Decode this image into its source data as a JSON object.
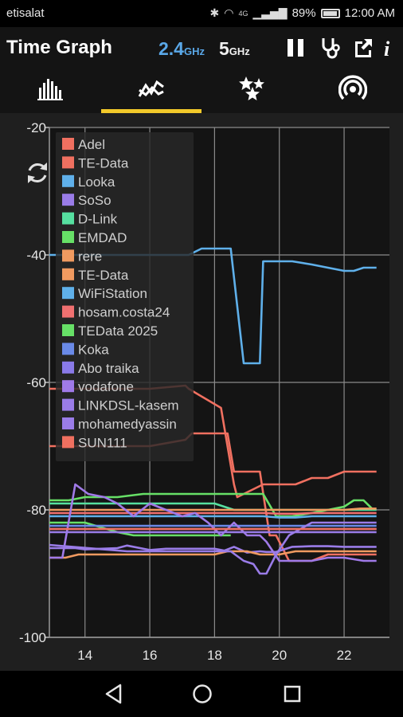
{
  "status_bar": {
    "carrier": "etisalat",
    "signal_label": "4G",
    "battery": "89%",
    "time": "12:00 AM"
  },
  "app_bar": {
    "title": "Time Graph",
    "band_24_value": "2.4",
    "band_24_unit": "GHz",
    "band_5_value": "5",
    "band_5_unit": "GHz",
    "actions": [
      "pause-icon",
      "stethoscope-icon",
      "share-icon",
      "info-icon"
    ],
    "info_glyph": "i"
  },
  "tabs": [
    {
      "name": "channel-rating",
      "icon": "bar-chart-icon"
    },
    {
      "name": "time-graph",
      "icon": "line-graph-icon",
      "selected": true
    },
    {
      "name": "channel-graph",
      "icon": "stars-icon"
    },
    {
      "name": "access-points",
      "icon": "wifi-signal-icon"
    }
  ],
  "colors": {
    "accent": "#f2c92a",
    "band_24": "#5aa8e8",
    "background": "#1f1f1f"
  },
  "chart_data": {
    "type": "line",
    "y_ticks": [
      "-20",
      "-40",
      "-60",
      "-80",
      "-100"
    ],
    "x_ticks": [
      "14",
      "16",
      "18",
      "20",
      "22"
    ],
    "ylim": [
      -100,
      -20
    ],
    "xlim": [
      12.9,
      23.4
    ],
    "grid": true,
    "legend_position": "top-left",
    "series": [
      {
        "name": "Adel",
        "color": "#f07060",
        "x": [
          12.9,
          16,
          17.1,
          17.2,
          18.2,
          18.6,
          18.7,
          19.5,
          20.5,
          21,
          21.5,
          22,
          22.6,
          23
        ],
        "y": [
          -61,
          -61,
          -60.5,
          -61,
          -64,
          -76,
          -78,
          -76,
          -76,
          -75,
          -75,
          -74,
          -74,
          -74
        ]
      },
      {
        "name": "TE-Data",
        "color": "#f07060",
        "x": [
          12.9,
          16,
          17.1,
          17.3,
          18.4,
          18.6,
          19.4,
          19.7,
          19.9,
          20.3,
          21,
          21.5,
          22.6,
          23
        ],
        "y": [
          -70,
          -70,
          -69,
          -68,
          -68,
          -74,
          -74,
          -84,
          -84,
          -88,
          -88,
          -87,
          -87,
          -87
        ]
      },
      {
        "name": "Looka",
        "color": "#5fb0ea",
        "x": [
          12.9,
          17.2,
          17.6,
          18.5,
          18.9,
          19.4,
          19.5,
          19.9,
          20.4,
          21,
          21.5,
          22,
          22.3,
          22.6,
          23
        ],
        "y": [
          -40,
          -40,
          -39,
          -39,
          -57,
          -57,
          -41,
          -41,
          -41,
          -41.5,
          -42,
          -42.5,
          -42.5,
          -42,
          -42
        ]
      },
      {
        "name": "SoSo",
        "color": "#9a7ce8",
        "x": [
          12.9,
          13.3,
          13.7,
          14,
          14.5,
          15,
          15.3,
          16,
          16.5,
          17,
          17.5,
          18,
          18.3,
          18.6,
          19,
          19.4,
          19.6,
          19.9,
          20.4,
          21,
          21.5,
          22,
          22.6,
          23
        ],
        "y": [
          -86,
          -86,
          -86,
          -86.2,
          -86.1,
          -86,
          -85.6,
          -86.3,
          -86.1,
          -86.1,
          -86.1,
          -86.1,
          -86.4,
          -85.8,
          -86.7,
          -86.5,
          -86.6,
          -86.6,
          -85.8,
          -85.7,
          -85.7,
          -85.8,
          -85.8,
          -85.8
        ]
      },
      {
        "name": "D-Link",
        "color": "#56e0a0",
        "x": [
          12.9,
          16,
          18,
          18.6,
          19.5,
          20,
          21.5,
          22.4,
          22.7,
          23
        ],
        "y": [
          -79,
          -79,
          -79,
          -80,
          -80,
          -80,
          -80,
          -80,
          -80,
          -80
        ]
      },
      {
        "name": "EMDAD",
        "color": "#67e067",
        "x": [
          12.9,
          13.5,
          14,
          15,
          15.8,
          16,
          17,
          17.5,
          18,
          18.5,
          19,
          19.5,
          19.9,
          20.4,
          21,
          21.5,
          22,
          22.3,
          22.6,
          22.9
        ],
        "y": [
          -78.5,
          -78.5,
          -78,
          -78,
          -77.5,
          -77.5,
          -77.5,
          -77.5,
          -77.5,
          -77.5,
          -77.5,
          -77.5,
          -81,
          -81,
          -80.5,
          -80,
          -79.5,
          -78.5,
          -78.5,
          -80
        ]
      },
      {
        "name": "rere",
        "color": "#f09a60",
        "x": [
          12.9,
          13.4,
          13.8,
          18,
          18.4,
          19,
          19.4,
          19.6,
          20,
          20.5,
          21,
          21.5,
          22,
          22.5,
          23
        ],
        "y": [
          -87.5,
          -87.5,
          -87,
          -87,
          -86.5,
          -86.5,
          -87,
          -87,
          -87,
          -86.5,
          -86.5,
          -86.5,
          -86.5,
          -86.5,
          -86.5
        ]
      },
      {
        "name": "TE-Data",
        "color": "#f09a60",
        "x": [
          12.9,
          16,
          18,
          18.6,
          19,
          19.5,
          20,
          20.5,
          21,
          21.5,
          22,
          22.5,
          23
        ],
        "y": [
          -80,
          -80,
          -80,
          -80,
          -80,
          -80,
          -80,
          -80,
          -80,
          -80,
          -80,
          -79.8,
          -79.8
        ]
      },
      {
        "name": "WiFiStation",
        "color": "#5fb0ea",
        "x": [
          12.9,
          16,
          18,
          18.7,
          19,
          19.5,
          20,
          20.5,
          21,
          21.5,
          22,
          22.5,
          23
        ],
        "y": [
          -81,
          -81,
          -81,
          -81,
          -81,
          -81,
          -81.2,
          -81.2,
          -81,
          -81,
          -81,
          -81,
          -81
        ]
      },
      {
        "name": "hosam.costa24",
        "color": "#f07070",
        "x": [
          12.9,
          16,
          18,
          18.7,
          19,
          19.5,
          20,
          20.5,
          21,
          21.5,
          22,
          22.5,
          23
        ],
        "y": [
          -80.5,
          -80.5,
          -80.5,
          -80.5,
          -80.5,
          -80.5,
          -80.6,
          -80.6,
          -80.5,
          -80.5,
          -80.5,
          -80.5,
          -80.5
        ]
      },
      {
        "name": "TEData 2025",
        "color": "#67e067",
        "x": [
          12.9,
          13.6,
          14,
          15,
          15.5,
          16,
          17,
          17.5,
          18,
          18.5
        ],
        "y": [
          -82,
          -82,
          -82,
          -83.5,
          -84,
          -84,
          -84,
          -84,
          -84,
          -84
        ]
      },
      {
        "name": "Koka",
        "color": "#6a8ae8",
        "x": [
          12.9,
          15,
          16,
          18,
          19,
          20,
          21,
          22,
          23
        ],
        "y": [
          -82.5,
          -82.5,
          -82.5,
          -82.5,
          -82.5,
          -82.5,
          -82.5,
          -82.5,
          -82.5
        ]
      },
      {
        "name": "Abo traika",
        "color": "#8a7ae8",
        "x": [
          12.9,
          14,
          15,
          16,
          18,
          19,
          20,
          21,
          22,
          23
        ],
        "y": [
          -83,
          -83,
          -83,
          -83,
          -83,
          -83,
          -83,
          -83,
          -83,
          -83
        ]
      },
      {
        "name": "vodafone",
        "color": "#a07ae8",
        "x": [
          12.9,
          13.3,
          13.7,
          14.1,
          14.6,
          15,
          15.5,
          16,
          16.5,
          17,
          17.4,
          17.8,
          18.2,
          18.6,
          19,
          19.4,
          19.6,
          20,
          20.5,
          21,
          21.5,
          22,
          22.6,
          23
        ],
        "y": [
          -87.5,
          -87.5,
          -76,
          -77.5,
          -78,
          -79,
          -81,
          -79,
          -80,
          -81,
          -80.5,
          -82,
          -84,
          -82,
          -84,
          -84,
          -85,
          -88,
          -88,
          -88,
          -87.5,
          -87.5,
          -88,
          -88
        ]
      },
      {
        "name": "LINKDSL-kasem",
        "color": "#9a7ce8",
        "x": [
          12.9,
          15.3,
          18.5,
          18.9,
          19.2,
          19.4,
          19.6,
          19.9,
          20.3,
          21,
          22,
          23
        ],
        "y": [
          -85.5,
          -86.5,
          -86.5,
          -88,
          -88.5,
          -90,
          -90,
          -87,
          -84,
          -82,
          -82,
          -82
        ]
      },
      {
        "name": "mohamedyassin",
        "color": "#9a7ce8",
        "x": [
          12.9,
          15,
          16,
          18,
          19,
          20,
          21,
          22,
          23
        ],
        "y": [
          -83.5,
          -83.5,
          -83.5,
          -83.5,
          -83.5,
          -83.5,
          -83.5,
          -83.5,
          -83.5
        ]
      },
      {
        "name": "SUN111",
        "color": "#f07060",
        "x": [
          12.9,
          16,
          18,
          19,
          20,
          21,
          22,
          23
        ],
        "y": [
          -83,
          -83,
          -83,
          -83,
          -83,
          -83,
          -83,
          -83
        ]
      }
    ]
  }
}
